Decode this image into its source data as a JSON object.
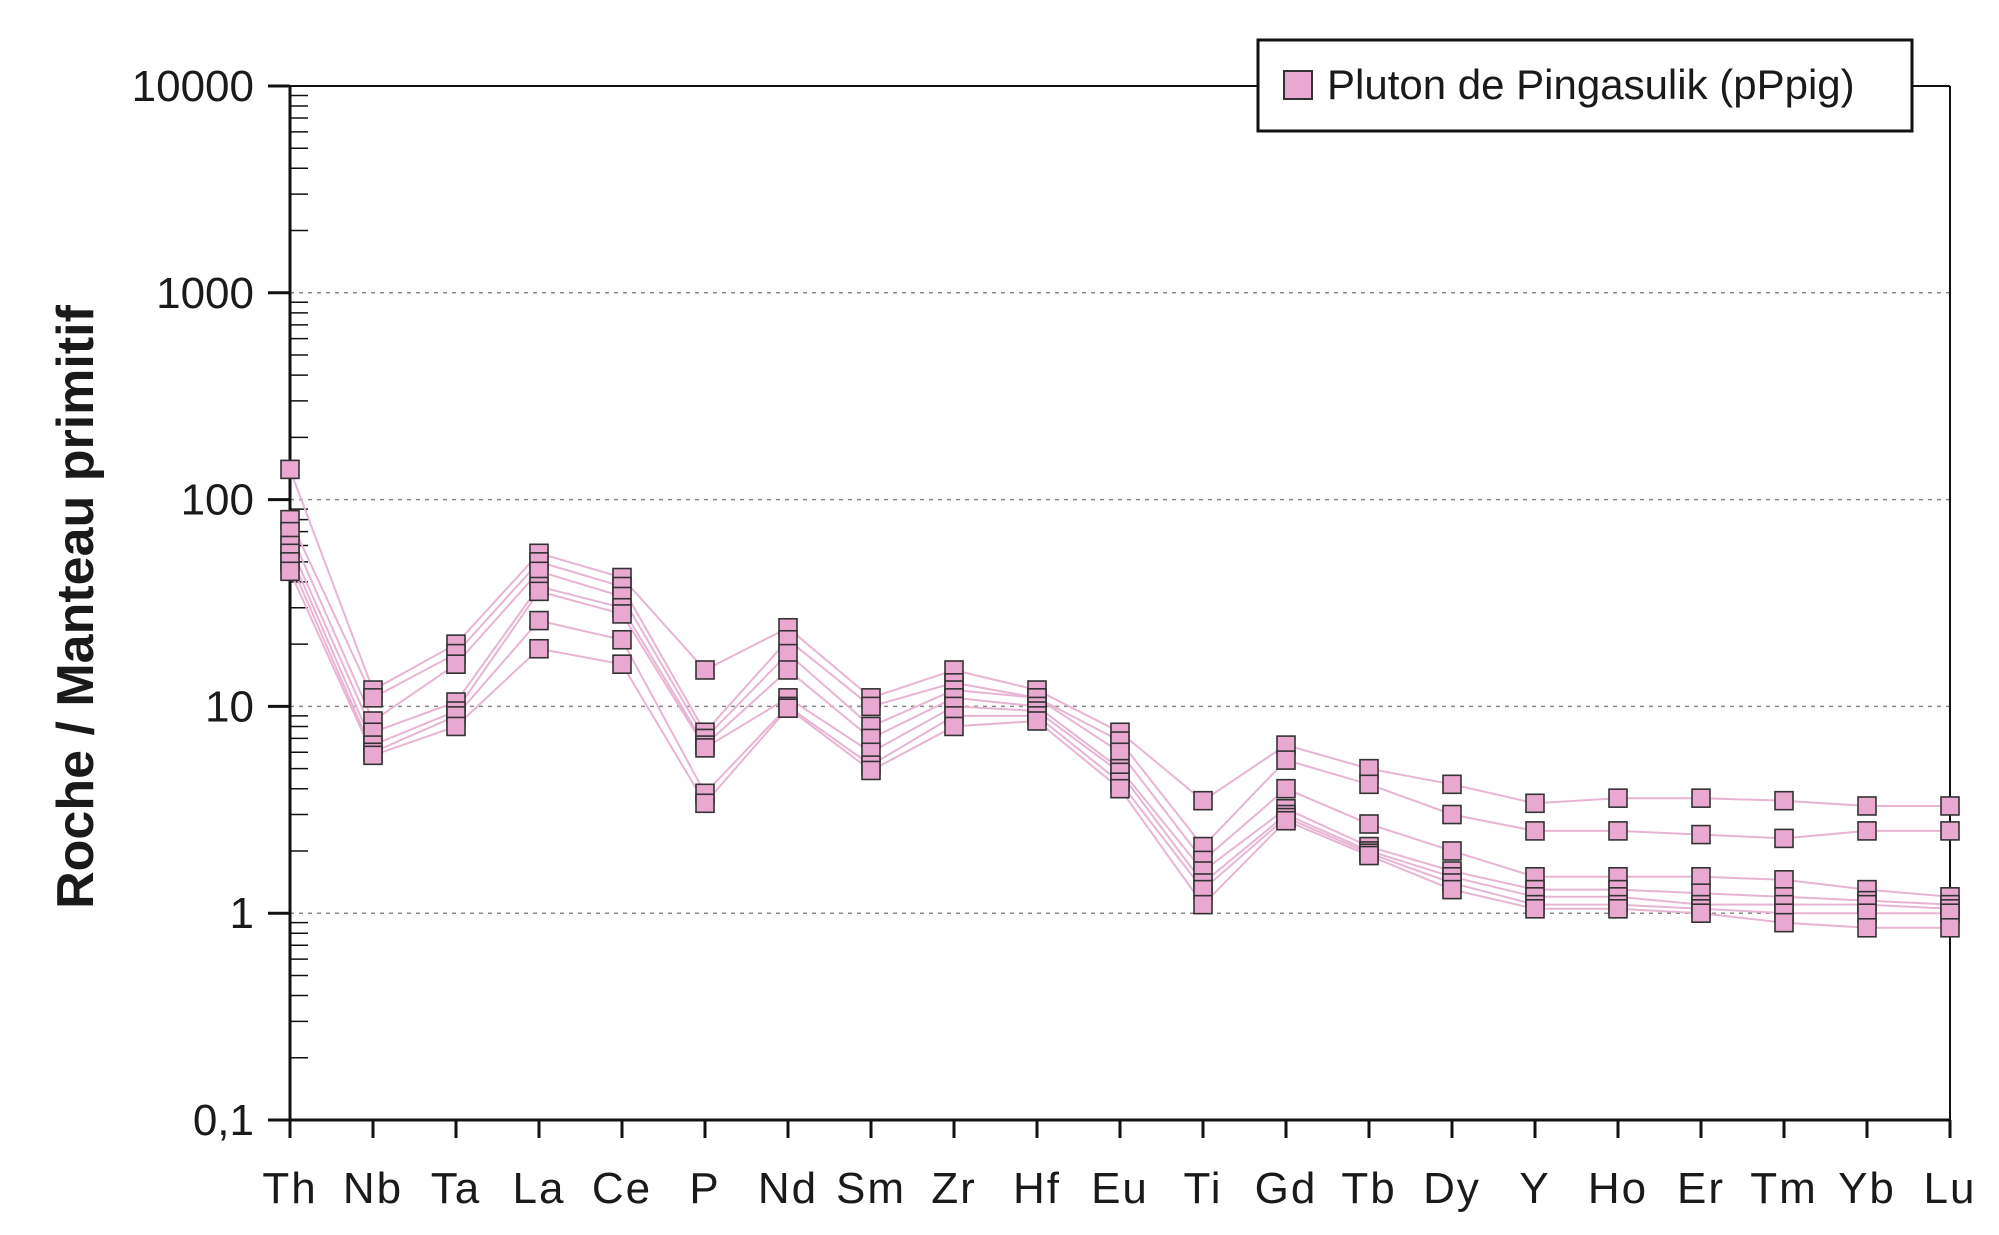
{
  "chart_data": {
    "type": "line",
    "title": "",
    "xlabel": "",
    "ylabel": "Roche / Manteau primitif",
    "yscale": "log",
    "ylim": [
      0.1,
      10000
    ],
    "yticks": [
      "0,1",
      "1",
      "10",
      "100",
      "1000",
      "10000"
    ],
    "grid": "dashed horizontal at decades 1–1000",
    "legend_position": "top-right",
    "legend": [
      "Pluton de Pingasulik (pPpig)"
    ],
    "marker_color": "#e8a8d0",
    "line_color": "#e8b4d4",
    "marker_edge_color": "#333333",
    "categories": [
      "Th",
      "Nb",
      "Ta",
      "La",
      "Ce",
      "P",
      "Nd",
      "Sm",
      "Zr",
      "Hf",
      "Eu",
      "Ti",
      "Gd",
      "Tb",
      "Dy",
      "Y",
      "Ho",
      "Er",
      "Tm",
      "Yb",
      "Lu"
    ],
    "series": [
      {
        "values": [
          140,
          12,
          20,
          55,
          42,
          15,
          24,
          11,
          15,
          12,
          7.5,
          3.5,
          6.5,
          5.0,
          4.2,
          3.4,
          3.6,
          3.6,
          3.5,
          3.3,
          3.3
        ]
      },
      {
        "values": [
          80,
          11,
          18,
          50,
          38,
          7.5,
          21,
          10,
          13,
          11,
          6.8,
          2.1,
          5.5,
          4.2,
          3.0,
          2.5,
          2.5,
          2.4,
          2.3,
          2.5,
          2.5
        ]
      },
      {
        "values": [
          70,
          8.5,
          16,
          45,
          34,
          7.0,
          18,
          8,
          12,
          11,
          6.0,
          1.8,
          4.0,
          2.7,
          2.0,
          1.5,
          1.5,
          1.5,
          1.45,
          1.3,
          1.2
        ]
      },
      {
        "values": [
          60,
          7.5,
          10.5,
          38,
          30,
          6.5,
          15,
          7,
          11,
          10,
          5.0,
          1.6,
          3.2,
          2.1,
          1.6,
          1.3,
          1.3,
          1.25,
          1.2,
          1.15,
          1.1
        ]
      },
      {
        "values": [
          55,
          6.5,
          9.5,
          36,
          28,
          6.3,
          11,
          6,
          10,
          9.5,
          4.8,
          1.4,
          3.0,
          2.0,
          1.5,
          1.2,
          1.2,
          1.1,
          1.1,
          1.1,
          1.05
        ]
      },
      {
        "values": [
          50,
          6.0,
          9.0,
          26,
          21,
          3.8,
          10,
          5.2,
          9,
          9,
          4.3,
          1.3,
          2.9,
          1.95,
          1.4,
          1.1,
          1.1,
          1.05,
          1.0,
          1.0,
          1.0
        ]
      },
      {
        "values": [
          45,
          5.8,
          8.0,
          19,
          16,
          3.4,
          9.8,
          4.9,
          8,
          8.5,
          4.0,
          1.1,
          2.8,
          1.9,
          1.3,
          1.05,
          1.05,
          1.0,
          0.9,
          0.85,
          0.85
        ]
      }
    ]
  }
}
